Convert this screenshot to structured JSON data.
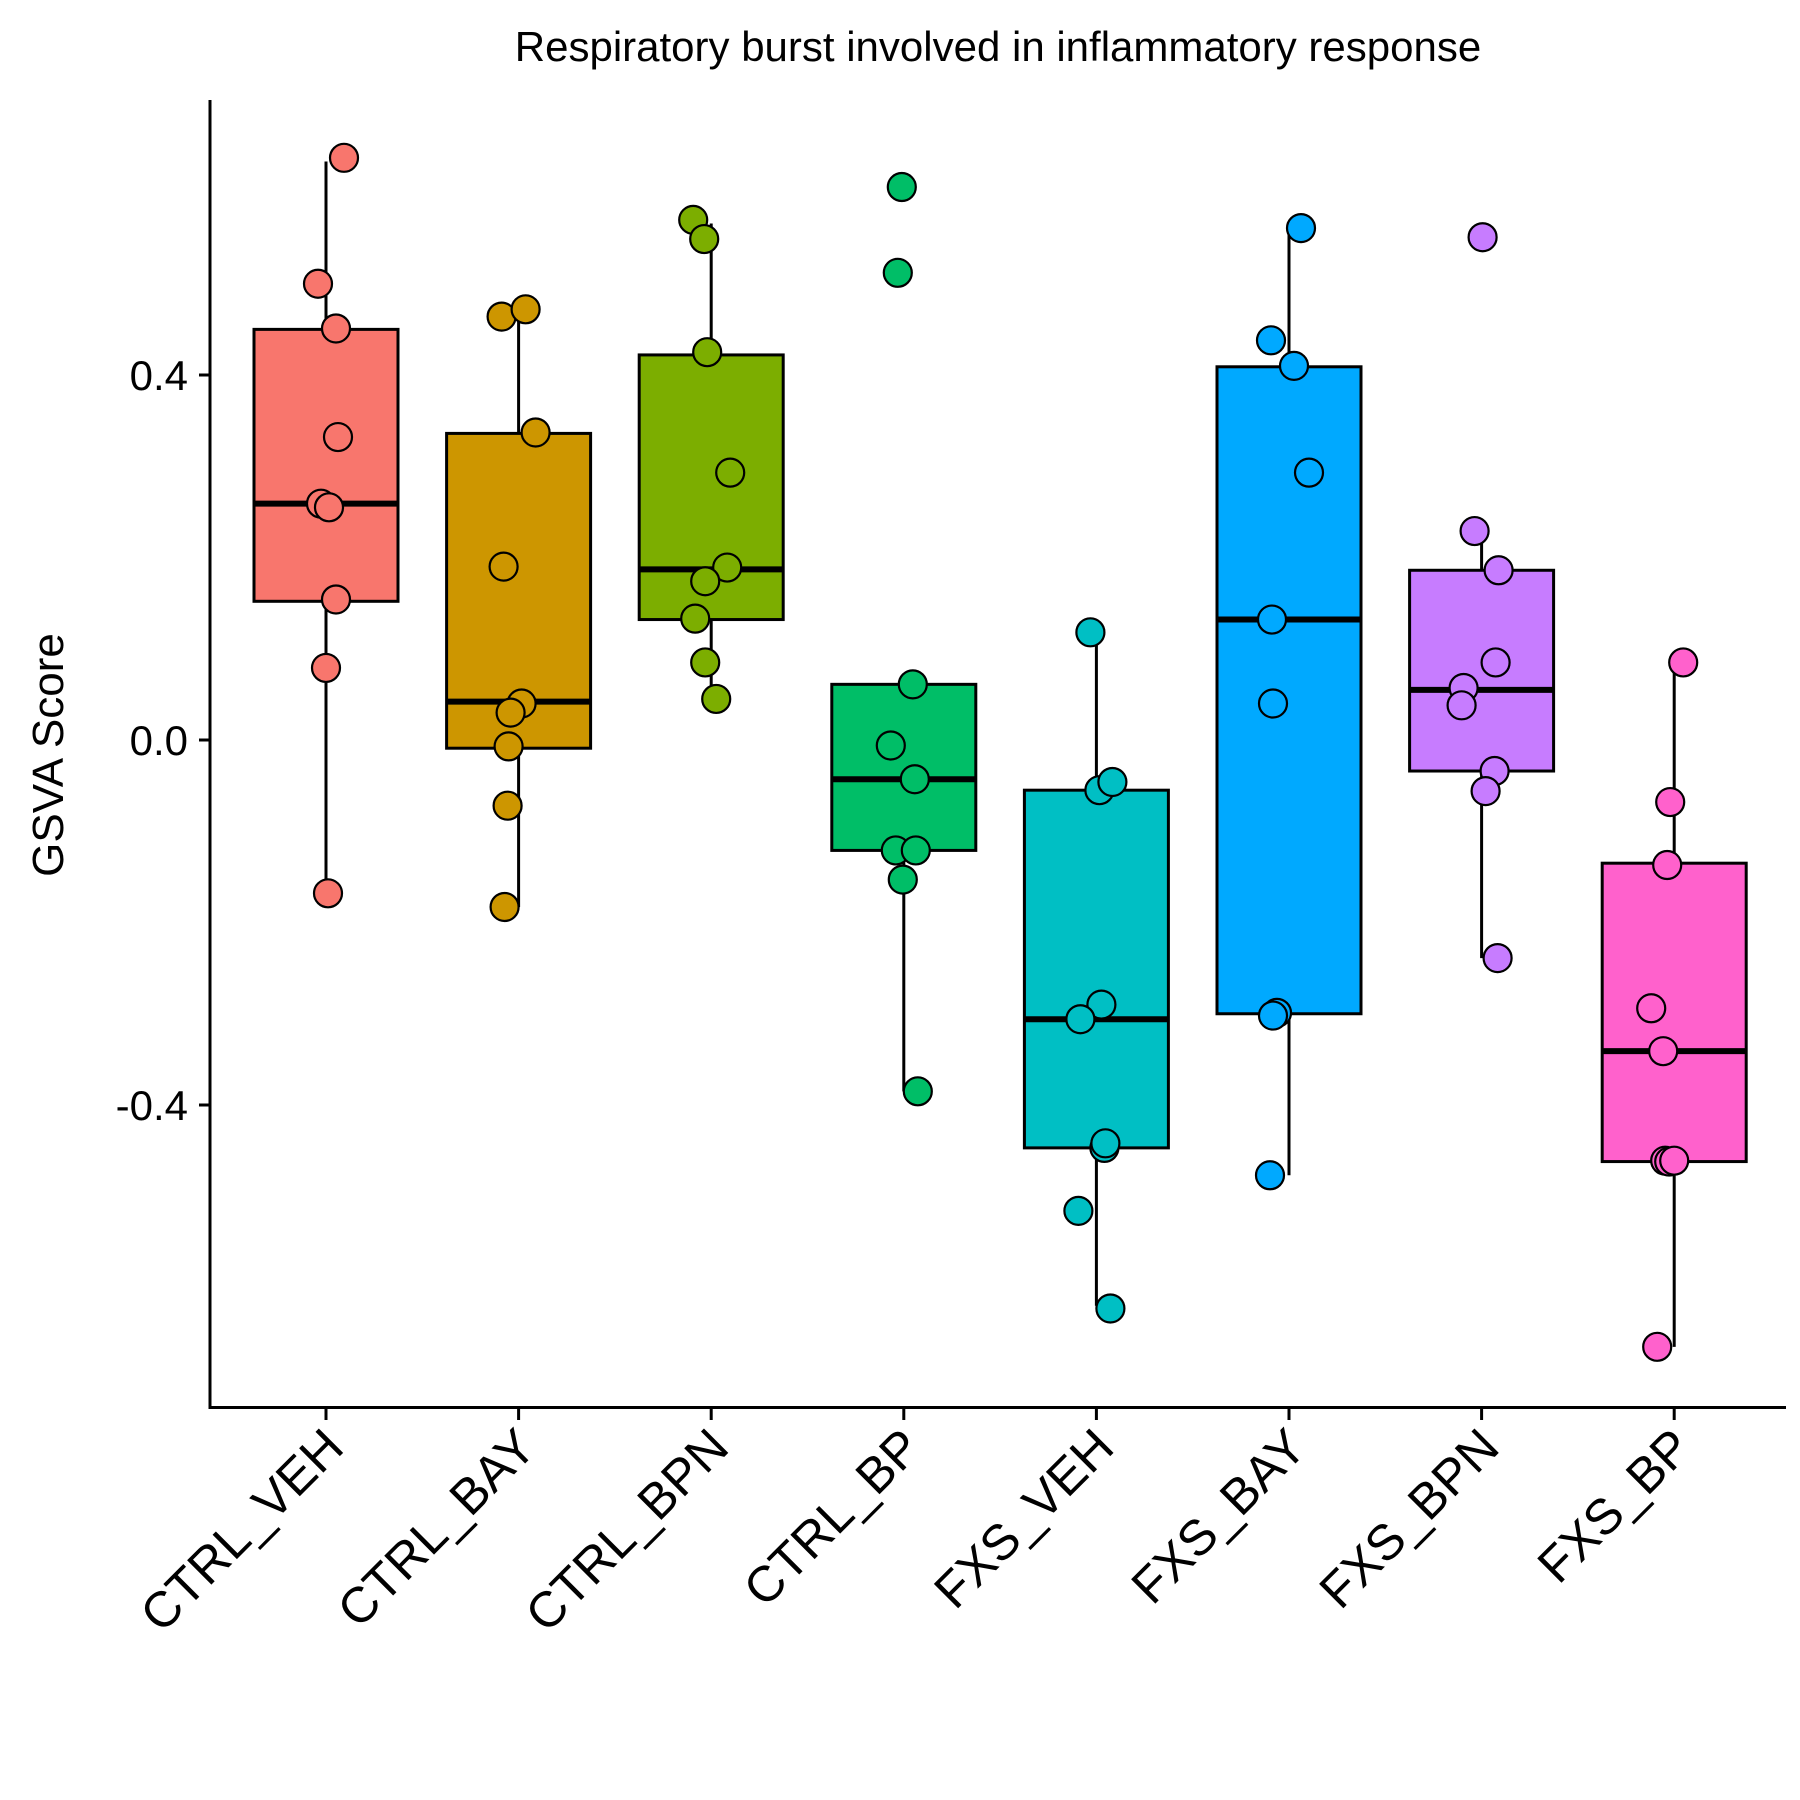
{
  "chart_data": {
    "type": "box",
    "title": "Respiratory burst involved in inflammatory response",
    "xlabel": "",
    "ylabel": "GSVA Score",
    "ylim": [
      -0.73,
      0.68
    ],
    "yticks": [
      0.4,
      0.0,
      -0.4
    ],
    "ytick_labels": [
      "0.4",
      "0.0",
      "-0.4"
    ],
    "categories": [
      "CTRL_VEH",
      "CTRL_BAY",
      "CTRL_BPN",
      "CTRL_BP",
      "FXS_VEH",
      "FXS_BAY",
      "FXS_BPN",
      "FXS_BP"
    ],
    "colors": [
      "#F8766D",
      "#CD9600",
      "#7CAE00",
      "#00BE67",
      "#00BFC4",
      "#00A9FF",
      "#C77CFF",
      "#FF61CC"
    ],
    "groups": [
      {
        "name": "CTRL_VEH",
        "q1": 0.152,
        "median": 0.259,
        "q3": 0.45,
        "whisker_low": -0.168,
        "whisker_high": 0.634,
        "points": [
          {
            "x": 0.18,
            "y": 0.638
          },
          {
            "x": -0.08,
            "y": 0.5
          },
          {
            "x": 0.1,
            "y": 0.451
          },
          {
            "x": 0.12,
            "y": 0.332
          },
          {
            "x": -0.05,
            "y": 0.259
          },
          {
            "x": 0.03,
            "y": 0.255
          },
          {
            "x": 0.1,
            "y": 0.154
          },
          {
            "x": 0.0,
            "y": 0.079
          },
          {
            "x": 0.02,
            "y": -0.168
          }
        ]
      },
      {
        "name": "CTRL_BAY",
        "q1": -0.009,
        "median": 0.042,
        "q3": 0.336,
        "whisker_low": -0.183,
        "whisker_high": 0.47,
        "points": [
          {
            "x": -0.17,
            "y": 0.464
          },
          {
            "x": 0.07,
            "y": 0.472
          },
          {
            "x": 0.17,
            "y": 0.337
          },
          {
            "x": -0.15,
            "y": 0.19
          },
          {
            "x": 0.03,
            "y": 0.04
          },
          {
            "x": -0.08,
            "y": 0.03
          },
          {
            "x": -0.1,
            "y": -0.007
          },
          {
            "x": -0.11,
            "y": -0.072
          },
          {
            "x": -0.14,
            "y": -0.183
          }
        ]
      },
      {
        "name": "CTRL_BPN",
        "q1": 0.132,
        "median": 0.187,
        "q3": 0.422,
        "whisker_low": 0.047,
        "whisker_high": 0.566,
        "points": [
          {
            "x": -0.18,
            "y": 0.57
          },
          {
            "x": -0.07,
            "y": 0.549
          },
          {
            "x": -0.04,
            "y": 0.425
          },
          {
            "x": 0.19,
            "y": 0.293
          },
          {
            "x": 0.16,
            "y": 0.189
          },
          {
            "x": -0.06,
            "y": 0.174
          },
          {
            "x": -0.16,
            "y": 0.133
          },
          {
            "x": -0.06,
            "y": 0.085
          },
          {
            "x": 0.05,
            "y": 0.045
          }
        ]
      },
      {
        "name": "CTRL_BP",
        "q1": -0.121,
        "median": -0.043,
        "q3": 0.061,
        "whisker_low": -0.385,
        "whisker_high": 0.061,
        "points": [
          {
            "x": -0.02,
            "y": 0.606
          },
          {
            "x": -0.06,
            "y": 0.512
          },
          {
            "x": 0.09,
            "y": 0.061
          },
          {
            "x": -0.13,
            "y": -0.006
          },
          {
            "x": 0.11,
            "y": -0.043
          },
          {
            "x": -0.08,
            "y": -0.121
          },
          {
            "x": 0.12,
            "y": -0.121
          },
          {
            "x": -0.01,
            "y": -0.153
          },
          {
            "x": 0.14,
            "y": -0.385
          }
        ]
      },
      {
        "name": "FXS_VEH",
        "q1": -0.447,
        "median": -0.306,
        "q3": -0.055,
        "whisker_low": -0.62,
        "whisker_high": 0.118,
        "points": [
          {
            "x": -0.06,
            "y": 0.118
          },
          {
            "x": 0.03,
            "y": -0.055
          },
          {
            "x": 0.16,
            "y": -0.046
          },
          {
            "x": 0.05,
            "y": -0.29
          },
          {
            "x": -0.16,
            "y": -0.306
          },
          {
            "x": 0.08,
            "y": -0.447
          },
          {
            "x": 0.09,
            "y": -0.442
          },
          {
            "x": -0.18,
            "y": -0.516
          },
          {
            "x": 0.14,
            "y": -0.623
          }
        ]
      },
      {
        "name": "FXS_BAY",
        "q1": -0.3,
        "median": 0.132,
        "q3": 0.409,
        "whisker_low": -0.477,
        "whisker_high": 0.558,
        "points": [
          {
            "x": 0.12,
            "y": 0.561
          },
          {
            "x": -0.18,
            "y": 0.438
          },
          {
            "x": 0.05,
            "y": 0.41
          },
          {
            "x": 0.2,
            "y": 0.293
          },
          {
            "x": -0.17,
            "y": 0.132
          },
          {
            "x": -0.16,
            "y": 0.04
          },
          {
            "x": -0.12,
            "y": -0.299
          },
          {
            "x": -0.16,
            "y": -0.302
          },
          {
            "x": -0.19,
            "y": -0.477
          }
        ]
      },
      {
        "name": "FXS_BPN",
        "q1": -0.034,
        "median": 0.055,
        "q3": 0.186,
        "whisker_low": -0.239,
        "whisker_high": 0.229,
        "points": [
          {
            "x": 0.01,
            "y": 0.551
          },
          {
            "x": -0.07,
            "y": 0.229
          },
          {
            "x": 0.17,
            "y": 0.186
          },
          {
            "x": 0.14,
            "y": 0.085
          },
          {
            "x": -0.18,
            "y": 0.057
          },
          {
            "x": -0.2,
            "y": 0.038
          },
          {
            "x": 0.13,
            "y": -0.034
          },
          {
            "x": 0.04,
            "y": -0.056
          },
          {
            "x": 0.16,
            "y": -0.239
          }
        ]
      },
      {
        "name": "FXS_BP",
        "q1": -0.462,
        "median": -0.341,
        "q3": -0.135,
        "whisker_low": -0.665,
        "whisker_high": 0.085,
        "points": [
          {
            "x": 0.09,
            "y": 0.085
          },
          {
            "x": -0.04,
            "y": -0.068
          },
          {
            "x": -0.07,
            "y": -0.137
          },
          {
            "x": -0.23,
            "y": -0.294
          },
          {
            "x": -0.11,
            "y": -0.341
          },
          {
            "x": -0.09,
            "y": -0.461
          },
          {
            "x": -0.05,
            "y": -0.462
          },
          {
            "x": 0.0,
            "y": -0.461
          },
          {
            "x": -0.17,
            "y": -0.665
          }
        ]
      }
    ]
  }
}
